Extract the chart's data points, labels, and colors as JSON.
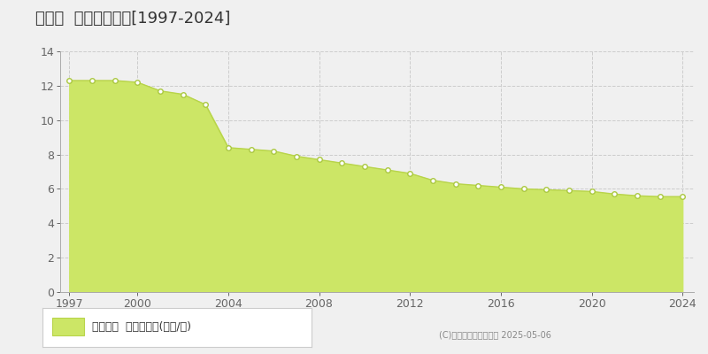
{
  "title": "甘楽町  基準地価推移[1997-2024]",
  "years": [
    1997,
    1998,
    1999,
    2000,
    2001,
    2002,
    2003,
    2004,
    2005,
    2006,
    2007,
    2008,
    2009,
    2010,
    2011,
    2012,
    2013,
    2014,
    2015,
    2016,
    2017,
    2018,
    2019,
    2020,
    2021,
    2022,
    2023,
    2024
  ],
  "values": [
    12.3,
    12.3,
    12.3,
    12.2,
    11.7,
    11.5,
    10.9,
    8.4,
    8.3,
    8.2,
    7.9,
    7.7,
    7.5,
    7.3,
    7.1,
    6.9,
    6.5,
    6.3,
    6.2,
    6.1,
    6.0,
    5.95,
    5.9,
    5.85,
    5.7,
    5.6,
    5.55,
    5.55
  ],
  "fill_color": "#cce666",
  "line_color": "#b8d44a",
  "marker_facecolor": "#ffffff",
  "marker_edgecolor": "#aac840",
  "bg_color": "#f0f0f0",
  "plot_bg_color": "#f0f0f0",
  "grid_color": "#cccccc",
  "ylim": [
    0,
    14
  ],
  "yticks": [
    0,
    2,
    4,
    6,
    8,
    10,
    12,
    14
  ],
  "xticks": [
    1997,
    2000,
    2004,
    2008,
    2012,
    2016,
    2020,
    2024
  ],
  "legend_label": "基準地価  平均坪単価(万円/坪)",
  "copyright": "(C)土地価格ドットコム 2025-05-06",
  "title_fontsize": 13,
  "axis_fontsize": 9,
  "legend_fontsize": 9,
  "copyright_fontsize": 7
}
